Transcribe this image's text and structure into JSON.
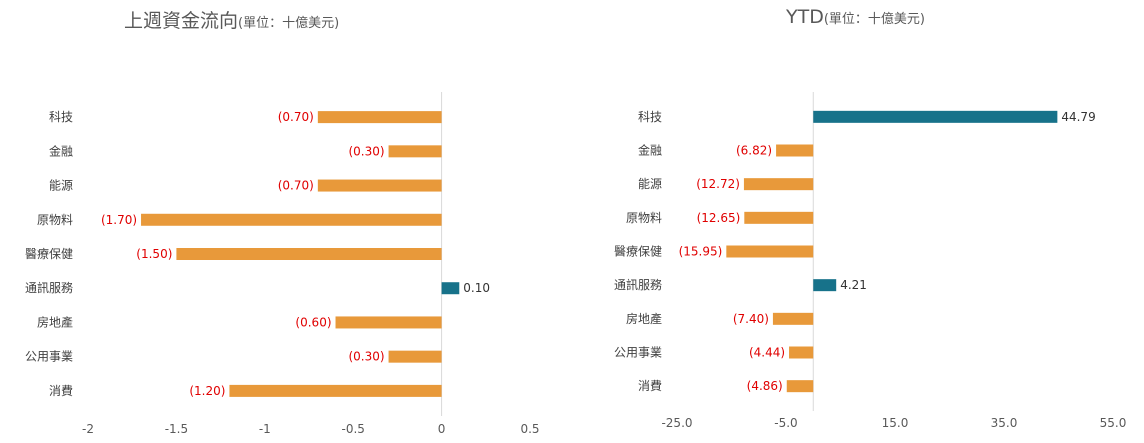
{
  "chart_data": [
    {
      "type": "bar",
      "orientation": "horizontal",
      "title": "上週資金流向",
      "unit": "(單位：十億美元)",
      "categories": [
        "科技",
        "金融",
        "能源",
        "原物料",
        "醫療保健",
        "通訊服務",
        "房地產",
        "公用事業",
        "消費"
      ],
      "values": [
        -0.7,
        -0.3,
        -0.7,
        -1.7,
        -1.5,
        0.1,
        -0.6,
        -0.3,
        -1.2
      ],
      "value_labels": [
        "(0.70)",
        "(0.30)",
        "(0.70)",
        "(1.70)",
        "(1.50)",
        "0.10",
        "(0.60)",
        "(0.30)",
        "(1.20)"
      ],
      "xlim": [
        -2,
        0.5
      ],
      "xticks": [
        -2,
        -1.5,
        -1,
        -0.5,
        0,
        0.5
      ],
      "xtick_labels": [
        "-2",
        "-1.5",
        "-1",
        "-0.5",
        "0",
        "0.5"
      ],
      "grid": false,
      "colors": {
        "positive": "#17728a",
        "negative": "#e8993a",
        "negative_label": "#e00000",
        "positive_label": "#333333"
      }
    },
    {
      "type": "bar",
      "orientation": "horizontal",
      "title": "YTD",
      "unit": "(單位：十億美元)",
      "categories": [
        "科技",
        "金融",
        "能源",
        "原物料",
        "醫療保健",
        "通訊服務",
        "房地產",
        "公用事業",
        "消費"
      ],
      "values": [
        44.79,
        -6.82,
        -12.72,
        -12.65,
        -15.95,
        4.21,
        -7.4,
        -4.44,
        -4.86
      ],
      "value_labels": [
        "44.79",
        "(6.82)",
        "(12.72)",
        "(12.65)",
        "(15.95)",
        "4.21",
        "(7.40)",
        "(4.44)",
        "(4.86)"
      ],
      "xlim": [
        -25,
        55
      ],
      "xticks": [
        -25,
        -5,
        15,
        35,
        55
      ],
      "xtick_labels": [
        "-25.0",
        "-5.0",
        "15.0",
        "35.0",
        "55.0"
      ],
      "grid": false,
      "colors": {
        "positive": "#17728a",
        "negative": "#e8993a",
        "negative_label": "#e00000",
        "positive_label": "#333333"
      }
    }
  ]
}
